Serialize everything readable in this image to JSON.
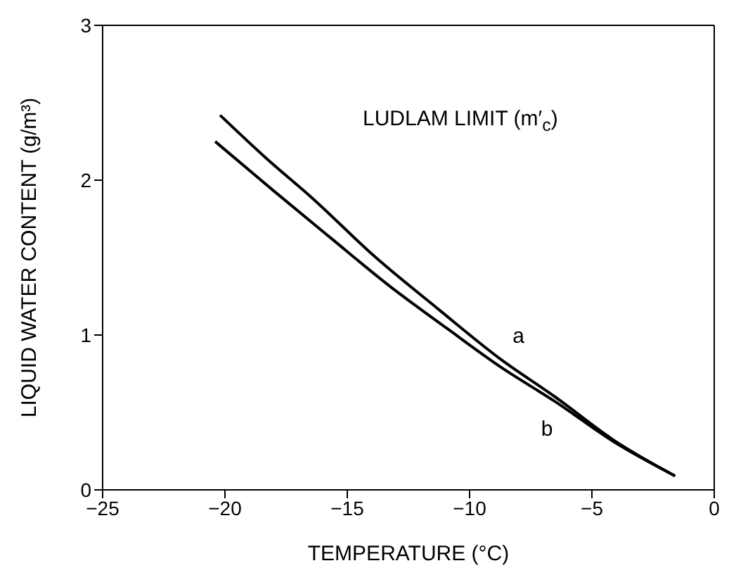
{
  "chart_data": {
    "type": "line",
    "xlabel": "TEMPERATURE (°C)",
    "ylabel": "LIQUID WATER CONTENT (g/m³)",
    "annotations": [
      "LUDLAM LIMIT (m′$_{c}$)"
    ],
    "xlim": [
      -25,
      0
    ],
    "xticks": [
      -25,
      -20,
      -15,
      -10,
      -5,
      0
    ],
    "ylim": [
      0,
      3
    ],
    "yticks": [
      0,
      1,
      2,
      3
    ],
    "legend": false,
    "marker": "none",
    "line_style": "solid",
    "series": [
      {
        "name": "a",
        "color": "#000000",
        "x": [
          -20.2,
          -18.3,
          -16.4,
          -13.9,
          -11.3,
          -8.7,
          -6.5,
          -4.1,
          -1.6
        ],
        "values": [
          2.42,
          2.14,
          1.88,
          1.51,
          1.17,
          0.84,
          0.6,
          0.32,
          0.09
        ]
      },
      {
        "name": "b",
        "color": "#000000",
        "x": [
          -20.4,
          -18.0,
          -15.7,
          -13.3,
          -10.9,
          -8.7,
          -6.5,
          -4.1,
          -1.6
        ],
        "values": [
          2.25,
          1.93,
          1.63,
          1.32,
          1.04,
          0.79,
          0.57,
          0.31,
          0.09
        ]
      }
    ]
  }
}
